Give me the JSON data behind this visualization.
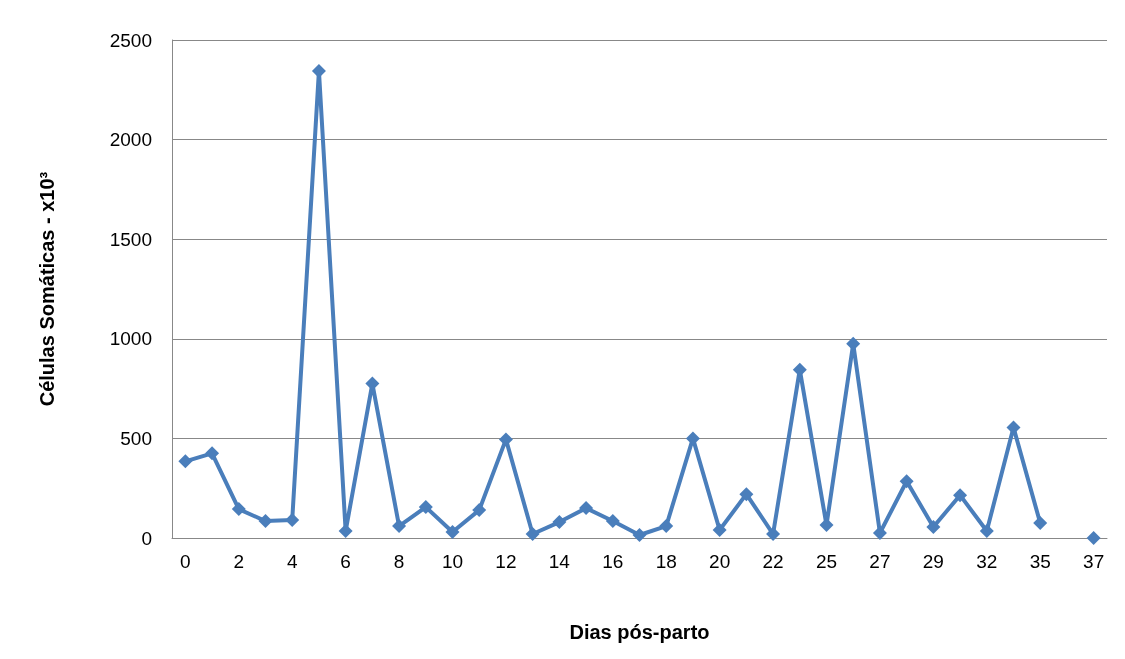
{
  "chart_data": {
    "type": "line",
    "xlabel": "Dias pós-parto",
    "ylabel": "Células Somáticas - x10³",
    "categories": [
      "0",
      null,
      "2",
      null,
      "4",
      null,
      "6",
      null,
      "8",
      null,
      "10",
      null,
      "12",
      null,
      "14",
      null,
      "16",
      null,
      "18",
      null,
      "20",
      null,
      "22",
      null,
      "25",
      null,
      "27",
      null,
      "29",
      null,
      "32",
      null,
      "35",
      null,
      "37"
    ],
    "series": [
      {
        "color": "#4a7ebb",
        "values": [
          385,
          425,
          145,
          85,
          90,
          2345,
          35,
          775,
          60,
          155,
          30,
          140,
          495,
          20,
          80,
          150,
          85,
          15,
          60,
          500,
          40,
          220,
          20,
          845,
          65,
          975,
          25,
          285,
          55,
          215,
          35,
          555,
          75,
          null,
          0
        ]
      }
    ],
    "ylim": [
      0,
      2500
    ],
    "yticks": [
      0,
      500,
      1000,
      1500,
      2000,
      2500
    ],
    "grid": "y",
    "marker": "diamond",
    "line_style": "solid"
  }
}
